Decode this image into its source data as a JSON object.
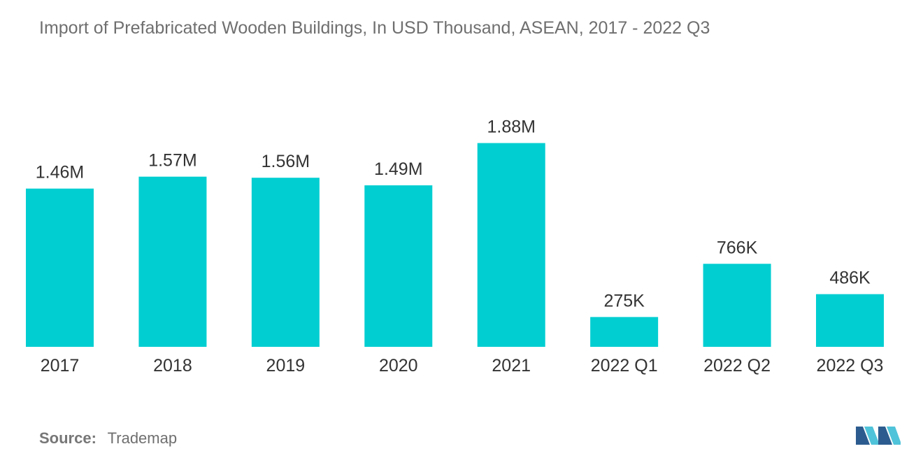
{
  "chart_data": {
    "type": "bar",
    "title": "Import of Prefabricated Wooden Buildings, In USD Thousand, ASEAN, 2017 - 2022 Q3",
    "categories": [
      "2017",
      "2018",
      "2019",
      "2020",
      "2021",
      "2022 Q1",
      "2022 Q2",
      "2022 Q3"
    ],
    "values": [
      1460000,
      1570000,
      1560000,
      1490000,
      1880000,
      275000,
      766000,
      486000
    ],
    "data_labels": [
      "1.46M",
      "1.57M",
      "1.56M",
      "1.49M",
      "1.88M",
      "275K",
      "766K",
      "486K"
    ],
    "xlabel": "",
    "ylabel": "",
    "ylim": [
      0,
      2000000
    ],
    "grid": false,
    "legend": "none",
    "bar_color": "#00CED1"
  },
  "footer": {
    "source_label": "Source:",
    "source_value": "Trademap"
  },
  "logo": {
    "icon": "mordor-intelligence-logo-icon",
    "colors": [
      "#2C5C8F",
      "#4FC3D9"
    ]
  }
}
